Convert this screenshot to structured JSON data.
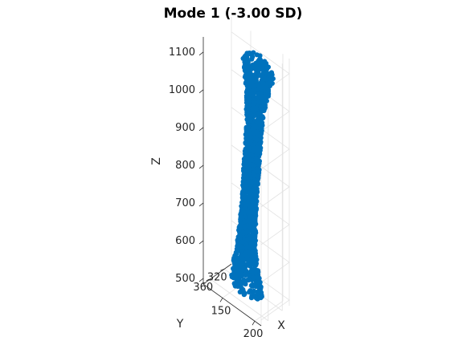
{
  "chart_data": {
    "type": "scatter3d",
    "title": "Mode 1 (-3.00 SD)",
    "xlabel": "X",
    "ylabel": "Y",
    "zlabel": "Z",
    "xlim": [
      120,
      210
    ],
    "ylim": [
      300,
      380
    ],
    "zlim": [
      485,
      1140
    ],
    "x_ticks": [
      150,
      200
    ],
    "y_ticks": [
      320,
      360
    ],
    "z_ticks": [
      500,
      600,
      700,
      800,
      900,
      1000,
      1100
    ],
    "grid": true,
    "marker_color": "#0072BD",
    "shape_profile": {
      "z": [
        490,
        500,
        520,
        560,
        600,
        650,
        700,
        750,
        800,
        850,
        900,
        950,
        1000,
        1040,
        1070,
        1090,
        1110,
        1125,
        1135
      ],
      "center_x": [
        163,
        164,
        164,
        164,
        165,
        167,
        169,
        171,
        173,
        175,
        177,
        179,
        181,
        183,
        185,
        186,
        186,
        184,
        182
      ],
      "center_y": [
        334,
        336,
        338,
        339,
        340,
        341,
        341,
        342,
        342,
        343,
        343,
        343,
        344,
        344,
        345,
        345,
        345,
        344,
        342
      ],
      "half_width": [
        20,
        22,
        22,
        18,
        14,
        12,
        11,
        11,
        11,
        11,
        11,
        11,
        13,
        15,
        18,
        20,
        22,
        20,
        14
      ]
    }
  }
}
